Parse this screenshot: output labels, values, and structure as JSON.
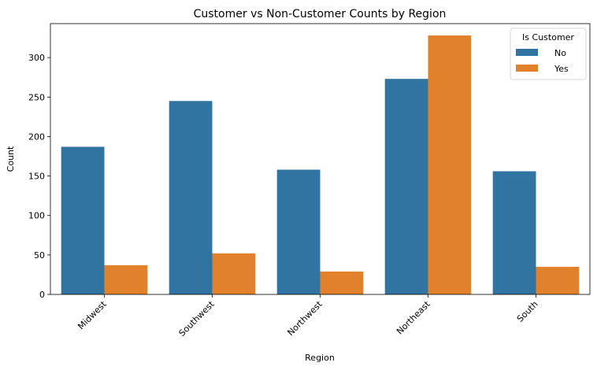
{
  "chart_data": {
    "type": "bar",
    "title": "Customer vs Non-Customer Counts by Region",
    "xlabel": "Region",
    "ylabel": "Count",
    "categories": [
      "Midwest",
      "Southwest",
      "Northwest",
      "Northeast",
      "South"
    ],
    "series": [
      {
        "name": "No",
        "color": "#3274a1",
        "values": [
          187,
          245,
          158,
          273,
          156
        ]
      },
      {
        "name": "Yes",
        "color": "#e1812c",
        "values": [
          37,
          52,
          29,
          328,
          35
        ]
      }
    ],
    "ylim": [
      0,
      343
    ],
    "yticks": [
      0,
      50,
      100,
      150,
      200,
      250,
      300
    ],
    "grid": false,
    "legend": {
      "title": "Is Customer",
      "placement": "top-right"
    }
  }
}
